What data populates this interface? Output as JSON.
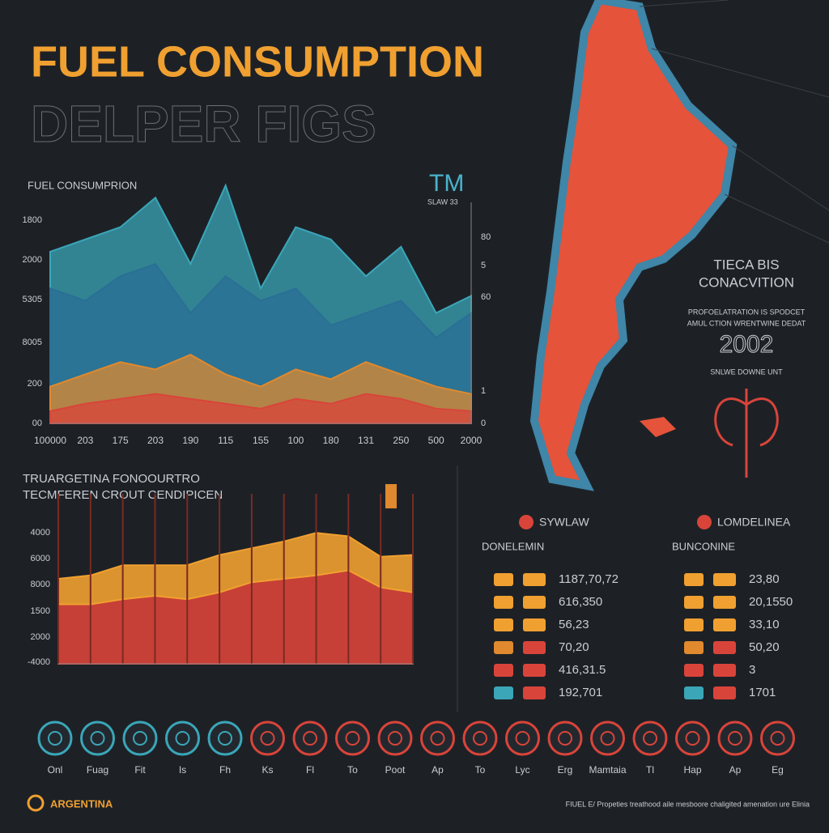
{
  "header": {
    "title": "FUEL CONSUMPTION",
    "subtitle": "DELPER FIGS"
  },
  "chart_data": [
    {
      "type": "area",
      "title": "FUEL CONSUMPRION",
      "badge": "TM",
      "badge_sub": "SLAW  33",
      "categories": [
        "100000",
        "203",
        "175",
        "203",
        "190",
        "115",
        "155",
        "100",
        "180",
        "131",
        "250",
        "500",
        "2000"
      ],
      "y_axis_labels": [
        "1800",
        "2000",
        "5305",
        "8005",
        "200",
        "00"
      ],
      "y2_axis_labels": [
        "80",
        "5",
        "60",
        "1",
        "0"
      ],
      "ylim": [
        0,
        100
      ],
      "series": [
        {
          "name": null,
          "color": "#3aa6b8",
          "values": [
            70,
            75,
            80,
            92,
            65,
            97,
            55,
            80,
            75,
            60,
            72,
            45,
            52
          ]
        },
        {
          "name": null,
          "color": "#2a6f95",
          "values": [
            55,
            50,
            60,
            65,
            45,
            60,
            50,
            55,
            40,
            45,
            50,
            35,
            45
          ]
        },
        {
          "name": null,
          "color": "#e0892e",
          "values": [
            15,
            20,
            25,
            22,
            28,
            20,
            15,
            22,
            18,
            25,
            20,
            15,
            12
          ]
        },
        {
          "name": null,
          "color": "#d9443a",
          "values": [
            5,
            8,
            10,
            12,
            10,
            8,
            6,
            10,
            8,
            12,
            10,
            6,
            5
          ]
        }
      ]
    },
    {
      "type": "area",
      "stacked": true,
      "title": "TRUARGETINA FONOOURTRO",
      "subtitle": "TECMFEREN CROUT CENDIPICEN",
      "categories": [
        null,
        null,
        null,
        null,
        null,
        null,
        null,
        null,
        null,
        null,
        null,
        null
      ],
      "y_axis_labels": [
        "4000",
        "6000",
        "8000",
        "1500",
        "2000",
        "-4000"
      ],
      "ylim": [
        0,
        100
      ],
      "series": [
        {
          "name": null,
          "color": "#d9443a",
          "values": [
            35,
            35,
            38,
            40,
            38,
            42,
            48,
            50,
            52,
            55,
            45,
            42
          ]
        },
        {
          "name": null,
          "color": "#f0a030",
          "values": [
            15,
            17,
            20,
            18,
            20,
            22,
            20,
            22,
            25,
            20,
            18,
            22
          ]
        }
      ]
    }
  ],
  "map": {
    "title_1": "TIECA BIS",
    "title_2": "CONACVITION",
    "line_1": "PROFOELATRATION IS SPODCET",
    "line_2": "AMUL CTION WRENTWINE DEDAT",
    "year": "2002",
    "line_3": "SNLWE DOWNE UNT"
  },
  "tables": [
    {
      "title": "SYWLAW",
      "subtitle": "DONELEMIN",
      "rows": [
        "1187,70,72",
        "616,350",
        "56,23",
        "70,20",
        "416,31.5",
        "192,701"
      ]
    },
    {
      "title": "LOMDELINEA",
      "subtitle": "BUNCONINE",
      "rows": [
        "23,80",
        "20,1550",
        "33,10",
        "50,20",
        "3",
        "1701"
      ]
    }
  ],
  "icons": [
    "Onl",
    "Fuag",
    "Fit",
    "Is",
    "Fh",
    "Ks",
    "Fl",
    "To",
    "Poot",
    "Ap",
    "To",
    "Lyc",
    "Erg",
    "Mamtaia",
    "Tl",
    "Hap",
    "Ap",
    "Eg"
  ],
  "footer": {
    "brand": "ARGENTINA",
    "note": "FIUEL E/ Propeties treathood aile mesboore chaligited amenation ure Elinia"
  }
}
